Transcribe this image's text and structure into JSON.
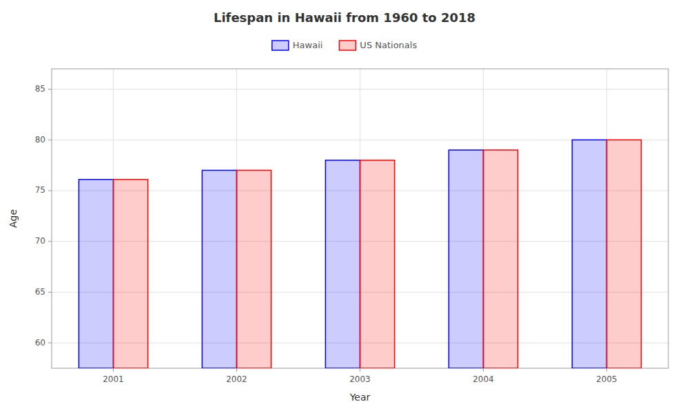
{
  "chart_data": {
    "type": "bar",
    "title": "Lifespan in Hawaii from 1960 to 2018",
    "x_label": "Year",
    "y_label": "Age",
    "categories": [
      "2001",
      "2002",
      "2003",
      "2004",
      "2005"
    ],
    "series": [
      {
        "name": "Hawaii",
        "color": "#0000ff",
        "values": [
          76.1,
          77.0,
          78.0,
          79.0,
          80.0
        ]
      },
      {
        "name": "US Nationals",
        "color": "#ff0000",
        "values": [
          76.1,
          77.0,
          78.0,
          79.0,
          80.0
        ]
      }
    ],
    "ylim": [
      57.5,
      87
    ],
    "yticks": [
      60,
      65,
      70,
      75,
      80,
      85
    ],
    "grid": true,
    "legend": "top"
  }
}
